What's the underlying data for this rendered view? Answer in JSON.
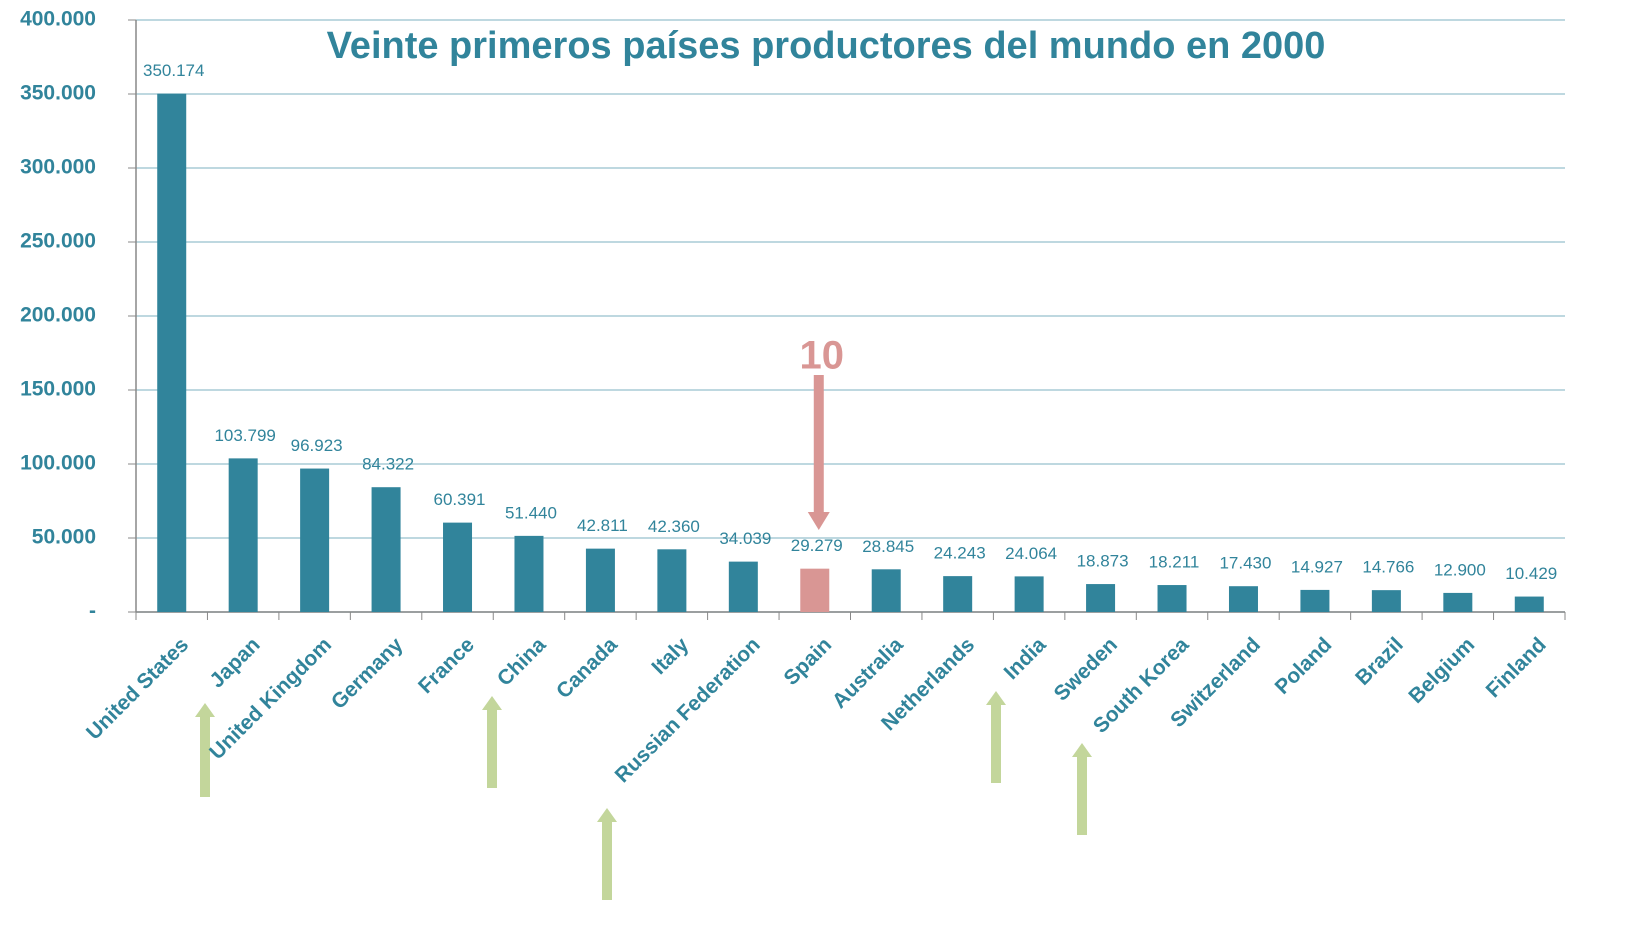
{
  "chart_data": {
    "type": "bar",
    "title": "Veinte primeros países productores del mundo en 2000",
    "categories": [
      "United States",
      "Japan",
      "United Kingdom",
      "Germany",
      "France",
      "China",
      "Canada",
      "Italy",
      "Russian Federation",
      "Spain",
      "Australia",
      "Netherlands",
      "India",
      "Sweden",
      "South Korea",
      "Switzerland",
      "Poland",
      "Brazil",
      "Belgium",
      "Finland"
    ],
    "values": [
      350174,
      103799,
      96923,
      84322,
      60391,
      51440,
      42811,
      42360,
      34039,
      29279,
      28845,
      24243,
      24064,
      18873,
      18211,
      17430,
      14927,
      14766,
      12900,
      10429
    ],
    "value_labels": [
      "350.174",
      "103.799",
      "96.923",
      "84.322",
      "60.391",
      "51.440",
      "42.811",
      "42.360",
      "34.039",
      "29.279",
      "28.845",
      "24.243",
      "24.064",
      "18.873",
      "18.211",
      "17.430",
      "14.927",
      "14.766",
      "12.900",
      "10.429"
    ],
    "colors": [
      "#31849b",
      "#31849b",
      "#31849b",
      "#31849b",
      "#31849b",
      "#31849b",
      "#31849b",
      "#31849b",
      "#31849b",
      "#d99694",
      "#31849b",
      "#31849b",
      "#31849b",
      "#31849b",
      "#31849b",
      "#31849b",
      "#31849b",
      "#31849b",
      "#31849b",
      "#31849b"
    ],
    "ylim": [
      0,
      400000
    ],
    "yticks": [
      {
        "value": 0,
        "label": "-"
      },
      {
        "value": 50000,
        "label": "50.000"
      },
      {
        "value": 100000,
        "label": "100.000"
      },
      {
        "value": 150000,
        "label": "150.000"
      },
      {
        "value": 200000,
        "label": "200.000"
      },
      {
        "value": 250000,
        "label": "250.000"
      },
      {
        "value": 300000,
        "label": "300.000"
      },
      {
        "value": 350000,
        "label": "350.000"
      },
      {
        "value": 400000,
        "label": "400.000"
      }
    ],
    "grid": true,
    "annotations": [
      {
        "text": "10",
        "category": "Spain"
      }
    ]
  }
}
